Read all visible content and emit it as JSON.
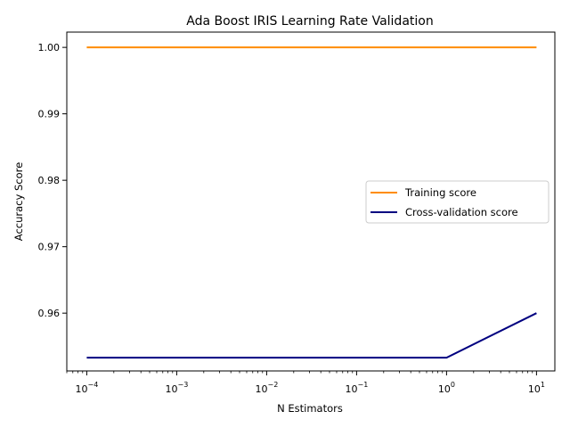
{
  "chart_data": {
    "type": "line",
    "title": "Ada Boost IRIS Learning Rate Validation",
    "xlabel": "N Estimators",
    "ylabel": "Accuracy Score",
    "xscale": "log",
    "xlim": [
      6e-05,
      16
    ],
    "ylim": [
      0.9513,
      1.0023
    ],
    "x": [
      0.0001,
      0.001,
      0.01,
      0.1,
      1,
      10
    ],
    "xtick_values": [
      0.0001,
      0.001,
      0.01,
      0.1,
      1,
      10
    ],
    "xtick_exponents": [
      "−4",
      "−3",
      "−2",
      "−1",
      "0",
      "1"
    ],
    "ytick_values": [
      0.96,
      0.97,
      0.98,
      0.99,
      1.0
    ],
    "ytick_labels": [
      "0.96",
      "0.97",
      "0.98",
      "0.99",
      "1.00"
    ],
    "series": [
      {
        "name": "Training score",
        "color": "#ff8c00",
        "values": [
          1.0,
          1.0,
          1.0,
          1.0,
          1.0,
          1.0
        ]
      },
      {
        "name": "Cross-validation score",
        "color": "#000080",
        "values": [
          0.9533,
          0.9533,
          0.9533,
          0.9533,
          0.9533,
          0.96
        ]
      }
    ],
    "grid": false,
    "legend_position": "center-right"
  }
}
